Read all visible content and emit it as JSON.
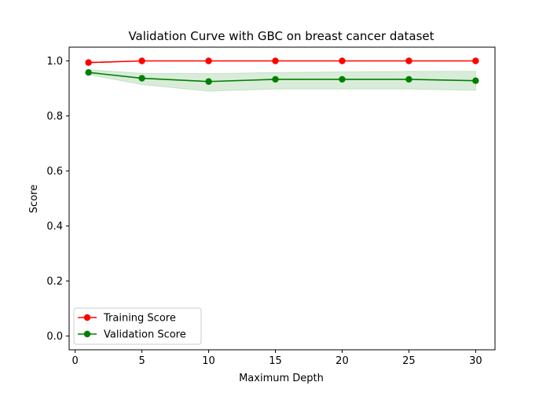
{
  "chart_data": {
    "type": "line",
    "title": "Validation Curve with GBC on breast cancer dataset",
    "xlabel": "Maximum Depth",
    "ylabel": "Score",
    "x": [
      1,
      5,
      10,
      15,
      20,
      25,
      30
    ],
    "xlim": [
      -0.45,
      31.45
    ],
    "ylim": [
      -0.05,
      1.05
    ],
    "xticks": [
      0,
      5,
      10,
      15,
      20,
      25,
      30
    ],
    "yticks": [
      0.0,
      0.2,
      0.4,
      0.6,
      0.8,
      1.0
    ],
    "ytick_labels": [
      "0.0",
      "0.2",
      "0.4",
      "0.6",
      "0.8",
      "1.0"
    ],
    "grid": false,
    "legend_position": "lower-left",
    "series": [
      {
        "name": "Training Score",
        "color": "#ff0000",
        "marker": "circle",
        "values": [
          0.994,
          1.0,
          1.0,
          1.0,
          1.0,
          1.0,
          1.0
        ],
        "band_lower": [
          0.992,
          1.0,
          1.0,
          1.0,
          1.0,
          1.0,
          1.0
        ],
        "band_upper": [
          0.996,
          1.0,
          1.0,
          1.0,
          1.0,
          1.0,
          1.0
        ],
        "band_color": "#ff0000"
      },
      {
        "name": "Validation Score",
        "color": "#008000",
        "marker": "circle",
        "values": [
          0.958,
          0.937,
          0.925,
          0.933,
          0.933,
          0.933,
          0.928
        ],
        "band_lower": [
          0.95,
          0.914,
          0.89,
          0.898,
          0.898,
          0.898,
          0.893
        ],
        "band_upper": [
          0.968,
          0.955,
          0.954,
          0.958,
          0.96,
          0.962,
          0.962
        ],
        "band_color": "#008000"
      }
    ]
  }
}
